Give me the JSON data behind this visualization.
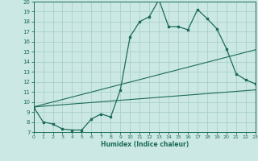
{
  "xlabel": "Humidex (Indice chaleur)",
  "bg_color": "#cce8e4",
  "grid_color": "#aad0cc",
  "line_color": "#1a6b5a",
  "xlim": [
    0,
    23
  ],
  "ylim": [
    7,
    20
  ],
  "xticks": [
    0,
    1,
    2,
    3,
    4,
    5,
    6,
    7,
    8,
    9,
    10,
    11,
    12,
    13,
    14,
    15,
    16,
    17,
    18,
    19,
    20,
    21,
    22,
    23
  ],
  "yticks": [
    7,
    8,
    9,
    10,
    11,
    12,
    13,
    14,
    15,
    16,
    17,
    18,
    19,
    20
  ],
  "main_x": [
    0,
    1,
    2,
    3,
    4,
    5,
    6,
    7,
    8,
    9,
    10,
    11,
    12,
    13,
    14,
    15,
    16,
    17,
    18,
    19,
    20,
    21,
    22,
    23
  ],
  "main_y": [
    9.5,
    8.0,
    7.8,
    7.3,
    7.2,
    7.2,
    8.3,
    8.8,
    8.5,
    11.2,
    16.5,
    18.0,
    18.5,
    20.2,
    17.5,
    17.5,
    17.2,
    19.2,
    18.3,
    17.3,
    15.3,
    12.8,
    12.2,
    11.8
  ],
  "line2_x": [
    0,
    23
  ],
  "line2_y": [
    9.5,
    15.2
  ],
  "line3_x": [
    0,
    23
  ],
  "line3_y": [
    9.5,
    11.2
  ],
  "marker_x": [
    0,
    1,
    2,
    3,
    4,
    5,
    6,
    7,
    8,
    9,
    10,
    11,
    12,
    13,
    14,
    15,
    16,
    17,
    18,
    19,
    20,
    21,
    22,
    23
  ],
  "marker_y": [
    9.5,
    8.0,
    7.8,
    7.3,
    7.2,
    7.2,
    8.3,
    8.8,
    8.5,
    11.2,
    16.5,
    18.0,
    18.5,
    20.2,
    17.5,
    17.5,
    17.2,
    19.2,
    18.3,
    17.3,
    15.3,
    12.8,
    12.2,
    11.8
  ]
}
